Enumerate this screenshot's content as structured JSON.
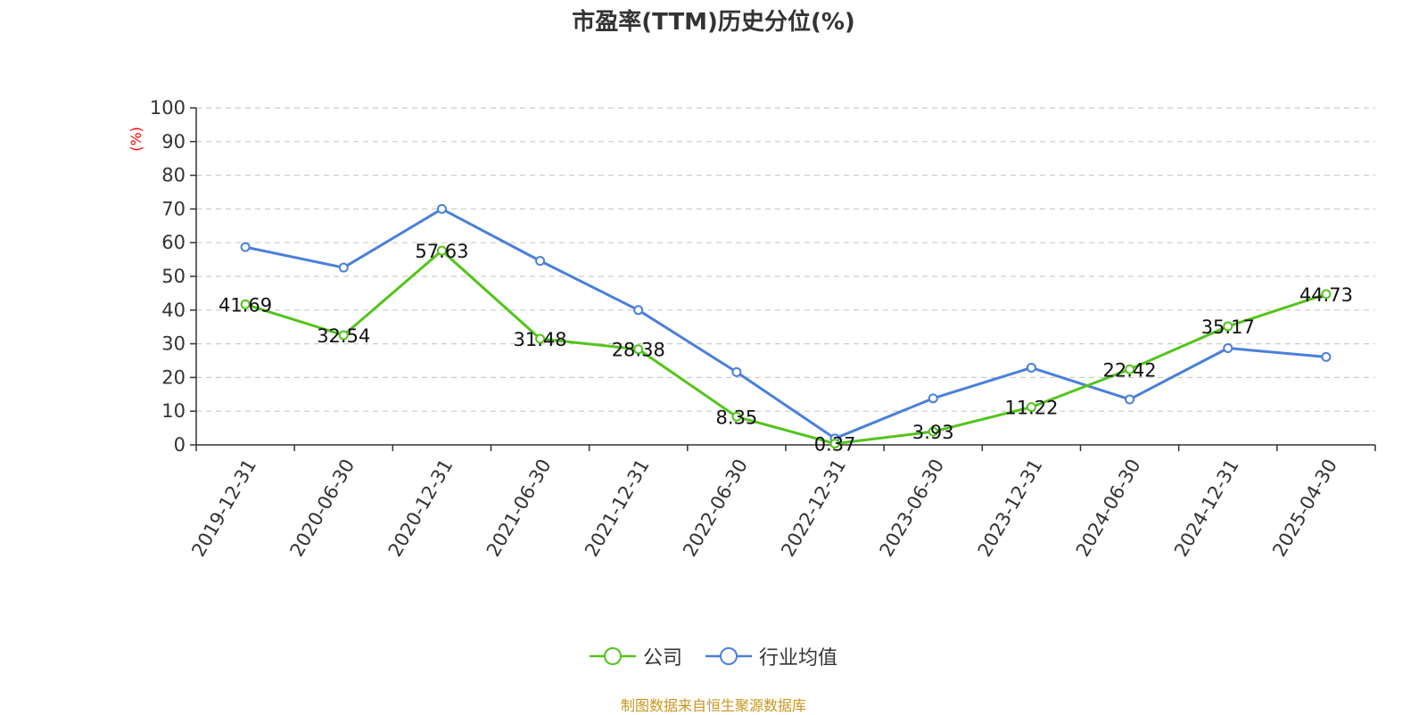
{
  "chart_data": {
    "type": "line",
    "title": "市盈率(TTM)历史分位(%)",
    "ylabel": "(%)",
    "xlabel": "",
    "ylim": [
      0,
      100
    ],
    "y_ticks": [
      0,
      10,
      20,
      30,
      40,
      50,
      60,
      70,
      80,
      90,
      100
    ],
    "categories": [
      "2019-12-31",
      "2020-06-30",
      "2020-12-31",
      "2021-06-30",
      "2021-12-31",
      "2022-06-30",
      "2022-12-31",
      "2023-06-30",
      "2023-12-31",
      "2024-06-30",
      "2024-12-31",
      "2025-04-30"
    ],
    "series": [
      {
        "name": "公司",
        "color": "#52c41a",
        "values": [
          41.69,
          32.54,
          57.63,
          31.48,
          28.38,
          8.35,
          0.37,
          3.93,
          11.22,
          22.42,
          35.17,
          44.73
        ],
        "labels": [
          "41.69",
          "32.54",
          "57.63",
          "31.48",
          "28.38",
          "8.35",
          "0.37",
          "3.93",
          "11.22",
          "22.42",
          "35.17",
          "44.73"
        ]
      },
      {
        "name": "行业均值",
        "color": "#4a7fdc",
        "values": [
          58.7,
          52.6,
          70.0,
          54.6,
          40.0,
          21.6,
          1.9,
          13.8,
          22.9,
          13.5,
          28.7,
          26.1
        ]
      }
    ],
    "grid": true,
    "grid_style": "dashed",
    "legend_position": "bottom-center",
    "axis_label_color": "#ff0000"
  },
  "source_note": "制图数据来自恒生聚源数据库",
  "source_color": "#c8961e"
}
